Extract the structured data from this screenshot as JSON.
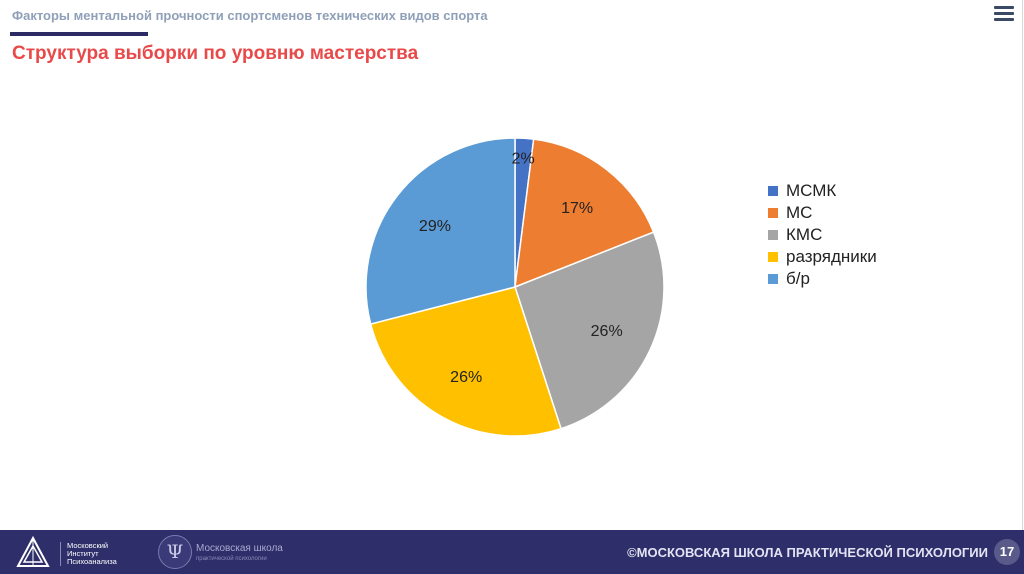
{
  "header": {
    "title": "Факторы ментальной прочности спортсменов технических видов спорта"
  },
  "slide": {
    "title": "Структура выборки по уровню мастерства"
  },
  "chart_data": {
    "type": "pie",
    "categories": [
      "МСМК",
      "МС",
      "КМС",
      "разрядники",
      "б/р"
    ],
    "values": [
      2,
      17,
      26,
      26,
      29
    ],
    "labels": [
      "2%",
      "17%",
      "26%",
      "26%",
      "29%"
    ],
    "colors": [
      "#4472c4",
      "#ed7d31",
      "#a5a5a5",
      "#ffc000",
      "#5b9bd5"
    ],
    "legend_position": "right"
  },
  "footer": {
    "logo1_text": [
      "Московский",
      "Институт",
      "Психоанализа"
    ],
    "logo2_text": "Московская школа",
    "logo2_sub": "практической психологии",
    "logo2_glyph": "Ψ",
    "copyright": "©МОСКОВСКАЯ ШКОЛА ПРАКТИЧЕСКОЙ ПСИХОЛОГИИ",
    "page_number": "17"
  },
  "icons": {
    "menu": "menu-icon",
    "logo1": "triangle-logo-icon",
    "logo2": "psi-logo-icon"
  }
}
